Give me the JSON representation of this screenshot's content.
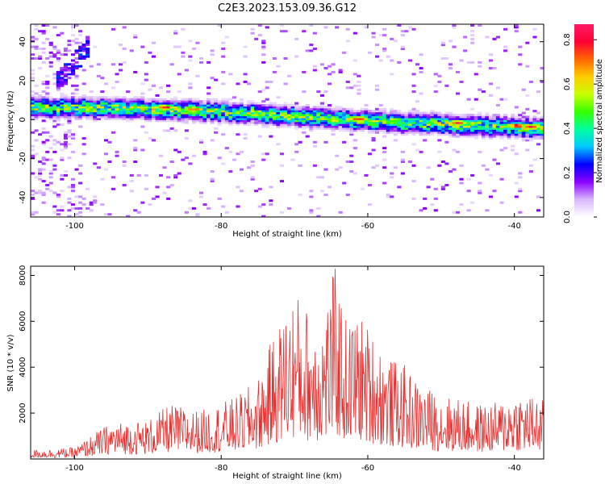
{
  "title": "C2E3.2023.153.09.36.G12",
  "chart_data": [
    {
      "type": "heatmap",
      "xlabel": "Height of straight line (km)",
      "ylabel": "Frequency (Hz)",
      "xlim": [
        -106,
        -36
      ],
      "ylim": [
        -50,
        49
      ],
      "xticks": [
        -100,
        -80,
        -60,
        -40
      ],
      "yticks": [
        -40,
        -20,
        0,
        20,
        40
      ],
      "xtick_labels": [
        "-100",
        "-80",
        "-60",
        "-40"
      ],
      "ytick_labels": [
        "-40",
        "-20",
        "0",
        "20",
        "40"
      ],
      "colorbar": {
        "label": "Normalized spectral amplitude",
        "range": [
          0,
          0.87
        ],
        "ticks": [
          0.0,
          0.2,
          0.4,
          0.6,
          0.8
        ],
        "tick_labels": [
          "0.0",
          "0.2",
          "0.4",
          "0.6",
          "0.8"
        ],
        "colormap": [
          "#ffffff",
          "#d9b8ff",
          "#8b00ff",
          "#0000ff",
          "#00c8ff",
          "#00ffa0",
          "#33ff00",
          "#c8ff00",
          "#ffcc00",
          "#ff6600",
          "#ff0033",
          "#ff1a66"
        ]
      },
      "ridge": {
        "description_points": [
          [
            -106,
            6
          ],
          [
            -95,
            5.5
          ],
          [
            -85,
            4.5
          ],
          [
            -75,
            2.5
          ],
          [
            -65,
            0
          ],
          [
            -55,
            -2
          ],
          [
            -45,
            -3.5
          ],
          [
            -36,
            -5
          ]
        ],
        "peak_amplitude_points": [
          [
            -88,
            6,
            0.85
          ],
          [
            -84,
            5,
            0.8
          ],
          [
            -61.5,
            0,
            0.85
          ],
          [
            -48,
            -2,
            0.85
          ],
          [
            -40,
            -3.5,
            0.85
          ],
          [
            -38,
            -4,
            0.8
          ],
          [
            -57,
            -1.5,
            0.6
          ],
          [
            -70,
            1.5,
            0.6
          ],
          [
            -91,
            6,
            0.55
          ]
        ]
      },
      "grid": false
    },
    {
      "type": "line",
      "xlabel": "Height of straight line (km)",
      "ylabel": "SNR (10 * v/v)",
      "xlim": [
        -106,
        -36
      ],
      "ylim": [
        0,
        8400
      ],
      "xticks": [
        -100,
        -80,
        -60,
        -40
      ],
      "yticks": [
        2000,
        4000,
        6000,
        8000
      ],
      "xtick_labels": [
        "-100",
        "-80",
        "-60",
        "-40"
      ],
      "ytick_labels": [
        "2000",
        "4000",
        "6000",
        "8000"
      ],
      "color": "#e83030",
      "envelope": [
        [
          -106,
          400
        ],
        [
          -100,
          500
        ],
        [
          -97,
          1200
        ],
        [
          -95,
          1600
        ],
        [
          -90,
          1700
        ],
        [
          -87,
          2400
        ],
        [
          -83,
          2100
        ],
        [
          -78,
          2700
        ],
        [
          -75,
          3500
        ],
        [
          -73,
          5300
        ],
        [
          -71,
          6700
        ],
        [
          -70,
          7400
        ],
        [
          -68,
          6500
        ],
        [
          -66,
          6500
        ],
        [
          -64.5,
          8400
        ],
        [
          -63,
          6200
        ],
        [
          -61,
          6300
        ],
        [
          -59,
          5400
        ],
        [
          -57,
          4400
        ],
        [
          -55,
          4100
        ],
        [
          -53,
          3300
        ],
        [
          -50,
          2800
        ],
        [
          -48,
          2700
        ],
        [
          -45,
          2400
        ],
        [
          -42,
          2500
        ],
        [
          -40,
          3000
        ],
        [
          -38,
          2800
        ],
        [
          -36,
          2600
        ]
      ],
      "grid": false
    }
  ]
}
